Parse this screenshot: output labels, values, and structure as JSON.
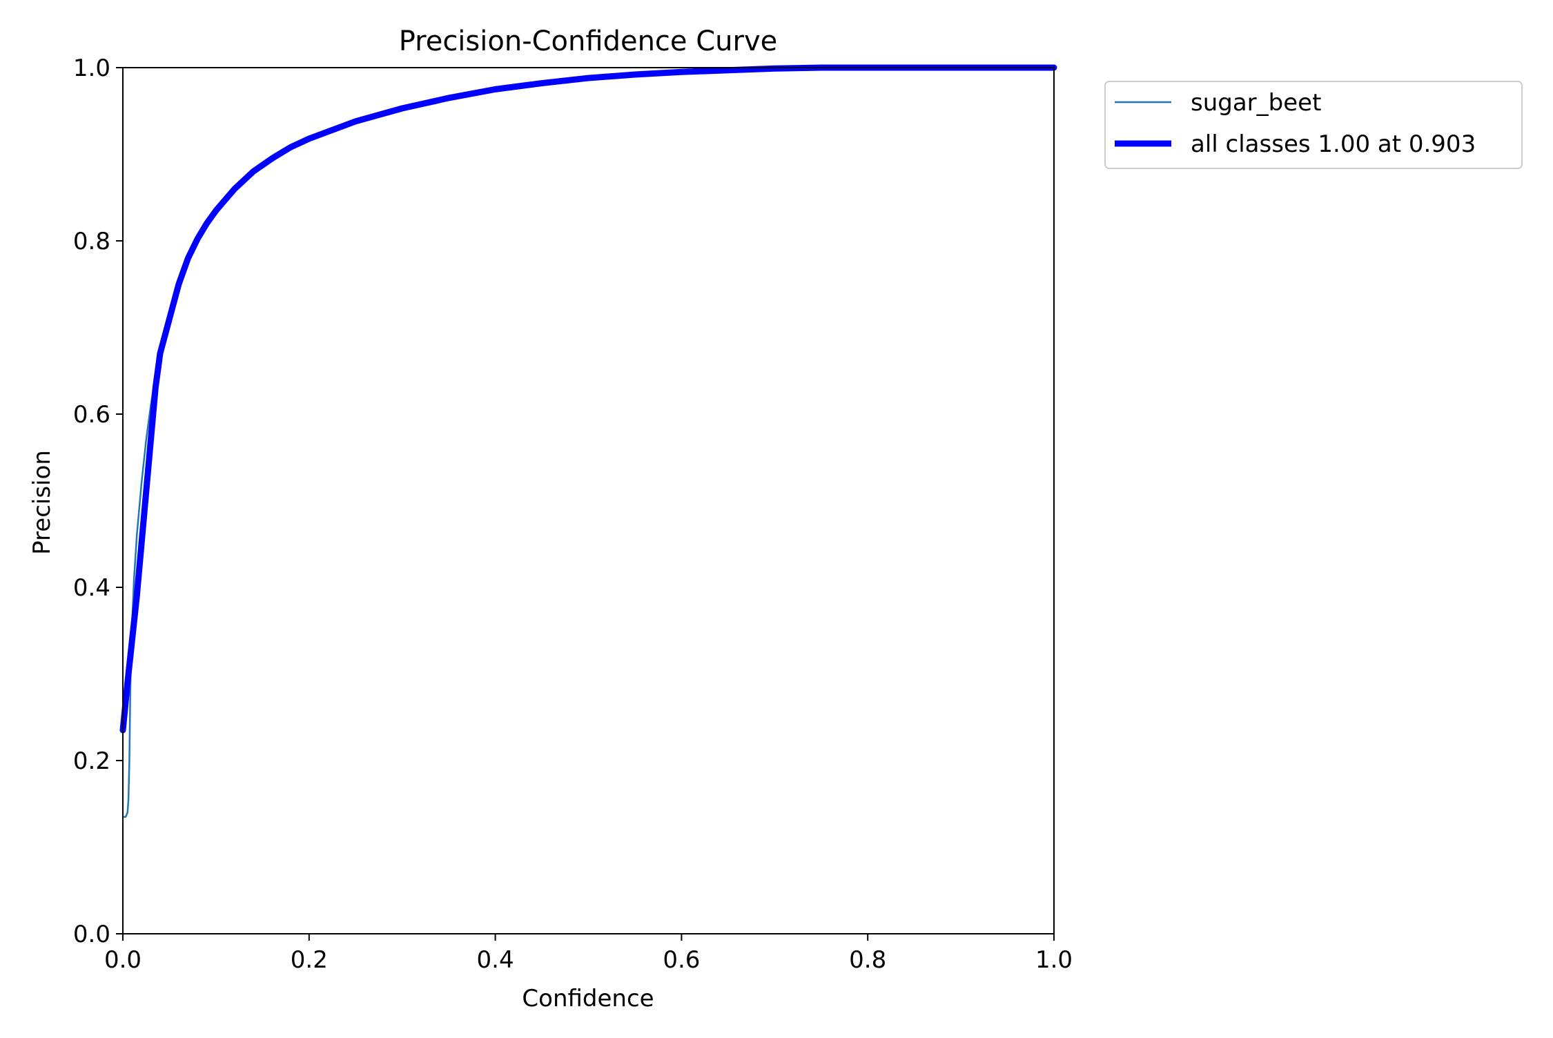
{
  "chart_data": {
    "type": "line",
    "title": "Precision-Confidence Curve",
    "xlabel": "Confidence",
    "ylabel": "Precision",
    "xlim": [
      0,
      1
    ],
    "ylim": [
      0,
      1
    ],
    "xticks": [
      0.0,
      0.2,
      0.4,
      0.6,
      0.8,
      1.0
    ],
    "yticks": [
      0.0,
      0.2,
      0.4,
      0.6,
      0.8,
      1.0
    ],
    "xtick_labels": [
      "0.0",
      "0.2",
      "0.4",
      "0.6",
      "0.8",
      "1.0"
    ],
    "ytick_labels": [
      "0.0",
      "0.2",
      "0.4",
      "0.6",
      "0.8",
      "1.0"
    ],
    "grid": false,
    "legend_position": "outside-top-right",
    "series": [
      {
        "name": "sugar_beet",
        "color": "#1f77b4",
        "x": [
          0.0,
          0.003,
          0.005,
          0.006,
          0.007,
          0.008,
          0.009,
          0.01,
          0.012,
          0.015,
          0.02,
          0.025,
          0.03,
          0.035,
          0.04,
          0.05,
          0.06,
          0.07,
          0.08,
          0.09,
          0.1,
          0.12,
          0.14,
          0.16,
          0.18,
          0.2,
          0.25,
          0.3,
          0.35,
          0.4,
          0.45,
          0.5,
          0.55,
          0.6,
          0.65,
          0.7,
          0.75,
          0.8,
          0.85,
          0.9,
          0.95,
          1.0
        ],
        "y": [
          0.135,
          0.135,
          0.14,
          0.155,
          0.2,
          0.28,
          0.33,
          0.36,
          0.41,
          0.46,
          0.52,
          0.57,
          0.61,
          0.645,
          0.67,
          0.71,
          0.75,
          0.78,
          0.802,
          0.82,
          0.835,
          0.86,
          0.88,
          0.895,
          0.908,
          0.918,
          0.938,
          0.953,
          0.965,
          0.975,
          0.982,
          0.988,
          0.992,
          0.995,
          0.997,
          0.999,
          1.0,
          1.0,
          1.0,
          1.0,
          1.0,
          1.0
        ]
      },
      {
        "name": "all classes 1.00 at 0.903",
        "color": "#0000ff",
        "x": [
          0.0,
          0.005,
          0.01,
          0.015,
          0.02,
          0.025,
          0.03,
          0.035,
          0.04,
          0.05,
          0.06,
          0.07,
          0.08,
          0.09,
          0.1,
          0.12,
          0.14,
          0.16,
          0.18,
          0.2,
          0.25,
          0.3,
          0.35,
          0.4,
          0.45,
          0.5,
          0.55,
          0.6,
          0.65,
          0.7,
          0.75,
          0.8,
          0.85,
          0.9,
          0.95,
          1.0
        ],
        "y": [
          0.235,
          0.29,
          0.34,
          0.39,
          0.45,
          0.51,
          0.57,
          0.63,
          0.67,
          0.71,
          0.75,
          0.78,
          0.802,
          0.82,
          0.835,
          0.86,
          0.88,
          0.895,
          0.908,
          0.918,
          0.938,
          0.953,
          0.965,
          0.975,
          0.982,
          0.988,
          0.992,
          0.995,
          0.997,
          0.999,
          1.0,
          1.0,
          1.0,
          1.0,
          1.0,
          1.0
        ]
      }
    ]
  }
}
